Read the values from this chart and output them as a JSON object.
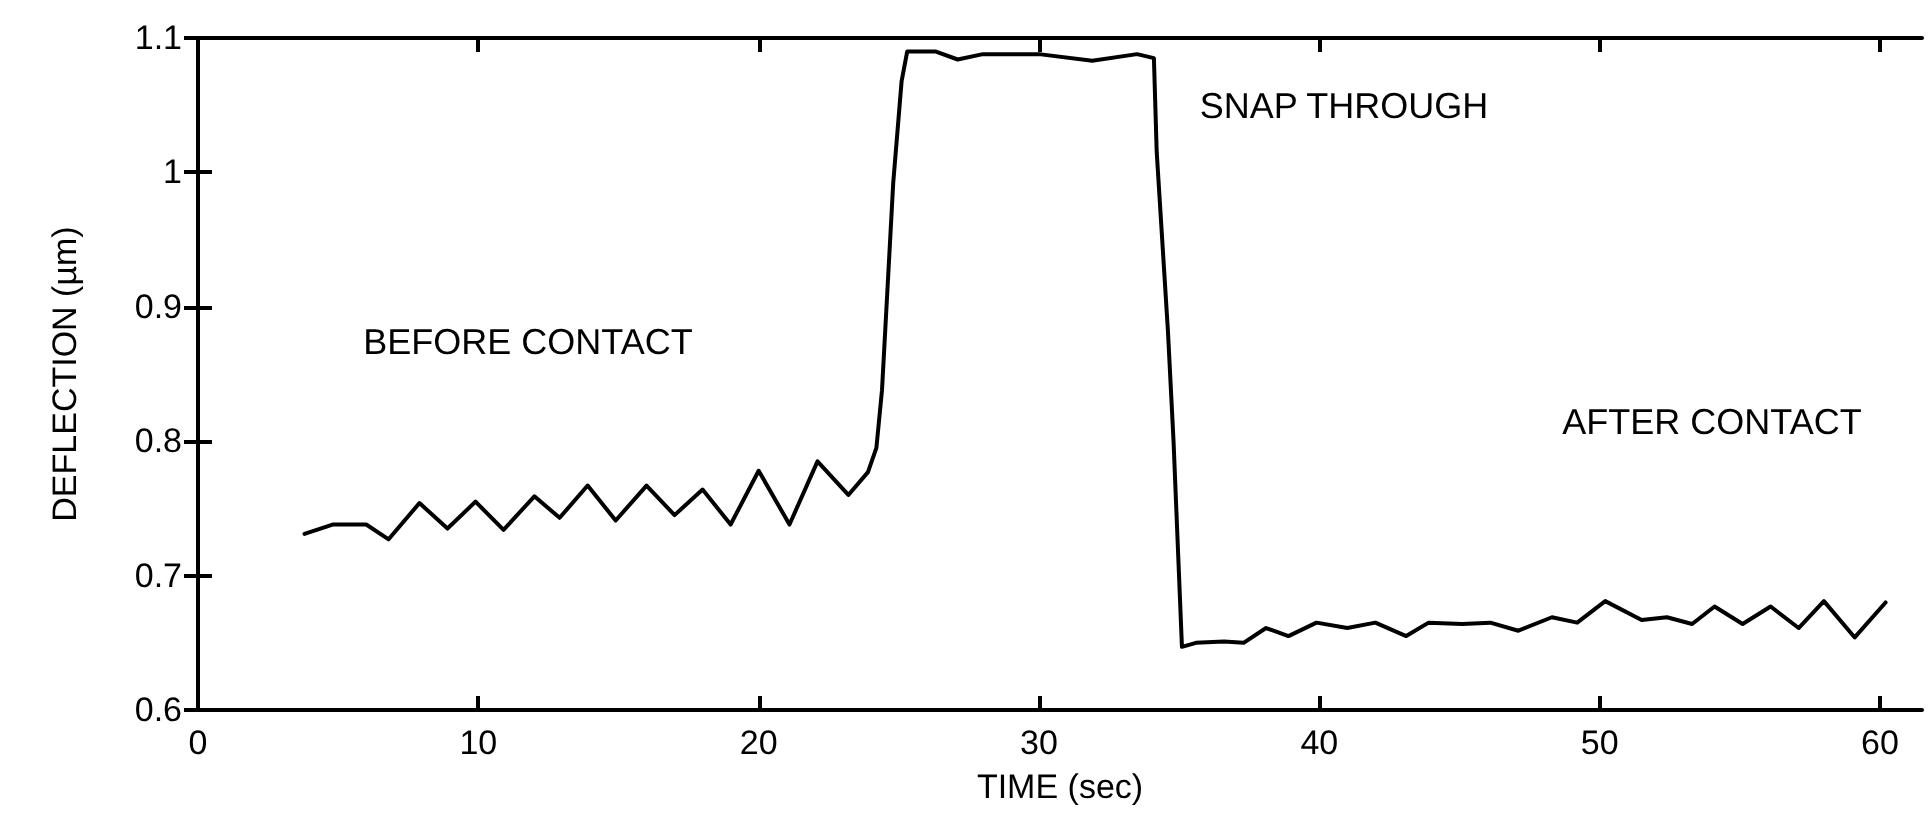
{
  "chart_data": {
    "type": "line",
    "xlabel": "TIME (sec)",
    "ylabel": "DEFLECTION (µm)",
    "xlim": [
      0,
      61.5
    ],
    "xticks": [
      0,
      10,
      20,
      30,
      40,
      50,
      60
    ],
    "ylim": [
      0.6,
      1.1
    ],
    "yticks": [
      0.6,
      0.7,
      0.8,
      0.9,
      1.0,
      1.1
    ],
    "grid": false,
    "marker": "none",
    "line_style": "solid",
    "annotations": [
      "BEFORE CONTACT",
      "SNAP THROUGH",
      "AFTER CONTACT"
    ],
    "series": [
      {
        "color": "#000000",
        "x": [
          3.8,
          4.8,
          6.0,
          6.8,
          7.9,
          8.9,
          9.9,
          10.9,
          12.0,
          12.9,
          13.9,
          14.9,
          16.0,
          17.0,
          18.0,
          19.0,
          20.0,
          21.1,
          22.1,
          23.2,
          23.9,
          24.2,
          24.4,
          24.6,
          24.8,
          25.1,
          25.3,
          26.3,
          27.1,
          28.0,
          30.0,
          31.9,
          33.5,
          34.1,
          34.2,
          34.6,
          34.8,
          35.1,
          35.6,
          36.6,
          37.3,
          38.1,
          38.9,
          39.9,
          41.0,
          42.0,
          43.1,
          43.9,
          45.1,
          46.1,
          47.1,
          48.3,
          49.2,
          50.2,
          51.5,
          52.4,
          53.3,
          54.1,
          55.1,
          56.1,
          57.1,
          58.0,
          59.1,
          60.2
        ],
        "values": [
          0.731,
          0.738,
          0.738,
          0.727,
          0.754,
          0.735,
          0.755,
          0.734,
          0.759,
          0.743,
          0.767,
          0.741,
          0.767,
          0.745,
          0.764,
          0.738,
          0.778,
          0.738,
          0.785,
          0.76,
          0.777,
          0.795,
          0.838,
          0.915,
          0.992,
          1.068,
          1.09,
          1.09,
          1.084,
          1.088,
          1.088,
          1.083,
          1.088,
          1.085,
          1.015,
          0.882,
          0.8,
          0.647,
          0.65,
          0.651,
          0.65,
          0.661,
          0.655,
          0.665,
          0.661,
          0.665,
          0.655,
          0.665,
          0.664,
          0.665,
          0.659,
          0.669,
          0.665,
          0.681,
          0.667,
          0.669,
          0.664,
          0.677,
          0.664,
          0.677,
          0.661,
          0.681,
          0.654,
          0.68
        ]
      }
    ]
  }
}
